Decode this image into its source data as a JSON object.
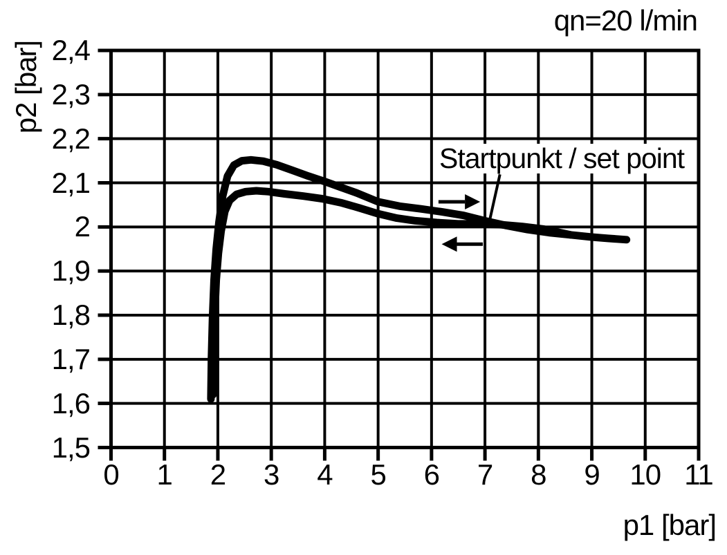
{
  "title": "qn=20 l/min",
  "annotation": {
    "label": "Startpunkt / set point"
  },
  "axes": {
    "x": {
      "label": "p1 [bar]",
      "ticks": [
        {
          "value": 0,
          "label": "0"
        },
        {
          "value": 1,
          "label": "1"
        },
        {
          "value": 2,
          "label": "2"
        },
        {
          "value": 3,
          "label": "3"
        },
        {
          "value": 4,
          "label": "4"
        },
        {
          "value": 5,
          "label": "5"
        },
        {
          "value": 6,
          "label": "6"
        },
        {
          "value": 7,
          "label": "7"
        },
        {
          "value": 8,
          "label": "8"
        },
        {
          "value": 9,
          "label": "9"
        },
        {
          "value": 10,
          "label": "10"
        },
        {
          "value": 11,
          "label": "11"
        }
      ]
    },
    "y": {
      "label": "p2 [bar]",
      "ticks": [
        {
          "value": 2.4,
          "label": "2,4"
        },
        {
          "value": 2.3,
          "label": "2,3"
        },
        {
          "value": 2.2,
          "label": "2,2"
        },
        {
          "value": 2.1,
          "label": "2,1"
        },
        {
          "value": 2.0,
          "label": "2"
        },
        {
          "value": 1.9,
          "label": "1,9"
        },
        {
          "value": 1.8,
          "label": "1,8"
        },
        {
          "value": 1.7,
          "label": "1,7"
        },
        {
          "value": 1.6,
          "label": "1,6"
        },
        {
          "value": 1.5,
          "label": "1,5"
        }
      ]
    }
  },
  "colors": {
    "ink": "#000000",
    "background": "#ffffff"
  },
  "chart_data": {
    "type": "line",
    "title": "qn=20 l/min",
    "xlabel": "p1 [bar]",
    "ylabel": "p2 [bar]",
    "xlim": [
      0,
      11
    ],
    "ylim": [
      1.5,
      2.4
    ],
    "grid": true,
    "x_ticks": [
      0,
      1,
      2,
      3,
      4,
      5,
      6,
      7,
      8,
      9,
      10,
      11
    ],
    "y_ticks": [
      1.5,
      1.6,
      1.7,
      1.8,
      1.9,
      2.0,
      2.1,
      2.2,
      2.3,
      2.4
    ],
    "annotation_text": "Startpunkt / set point",
    "set_point": [
      7.1,
      2.015
    ],
    "series": [
      {
        "name": "upper-hysteresis-curve",
        "points": [
          [
            1.87,
            1.61
          ],
          [
            1.88,
            1.7
          ],
          [
            1.9,
            1.79
          ],
          [
            1.93,
            1.88
          ],
          [
            1.97,
            1.95
          ],
          [
            2.02,
            2.01
          ],
          [
            2.09,
            2.07
          ],
          [
            2.18,
            2.115
          ],
          [
            2.3,
            2.14
          ],
          [
            2.45,
            2.15
          ],
          [
            2.62,
            2.152
          ],
          [
            2.85,
            2.149
          ],
          [
            3.1,
            2.141
          ],
          [
            3.4,
            2.128
          ],
          [
            3.7,
            2.115
          ],
          [
            4.0,
            2.103
          ],
          [
            4.3,
            2.09
          ],
          [
            4.6,
            2.077
          ],
          [
            5.0,
            2.057
          ],
          [
            5.4,
            2.047
          ],
          [
            5.8,
            2.041
          ],
          [
            6.2,
            2.034
          ],
          [
            6.6,
            2.026
          ],
          [
            7.0,
            2.014
          ],
          [
            7.4,
            2.003
          ],
          [
            7.8,
            1.994
          ],
          [
            8.2,
            1.987
          ],
          [
            8.6,
            1.982
          ],
          [
            9.0,
            1.977
          ],
          [
            9.3,
            1.974
          ],
          [
            9.65,
            1.971
          ]
        ]
      },
      {
        "name": "lower-hysteresis-curve",
        "points": [
          [
            1.91,
            1.62
          ],
          [
            1.92,
            1.71
          ],
          [
            1.94,
            1.8
          ],
          [
            1.97,
            1.88
          ],
          [
            2.01,
            1.94
          ],
          [
            2.06,
            1.99
          ],
          [
            2.13,
            2.035
          ],
          [
            2.22,
            2.06
          ],
          [
            2.35,
            2.074
          ],
          [
            2.52,
            2.08
          ],
          [
            2.72,
            2.082
          ],
          [
            2.95,
            2.08
          ],
          [
            3.25,
            2.075
          ],
          [
            3.6,
            2.07
          ],
          [
            3.95,
            2.064
          ],
          [
            4.3,
            2.055
          ],
          [
            4.65,
            2.043
          ],
          [
            5.0,
            2.03
          ],
          [
            5.35,
            2.02
          ],
          [
            5.7,
            2.014
          ],
          [
            6.1,
            2.01
          ],
          [
            6.5,
            2.007
          ],
          [
            6.9,
            2.007
          ],
          [
            7.3,
            2.005
          ],
          [
            7.7,
            2.001
          ],
          [
            8.1,
            1.995
          ],
          [
            8.6,
            1.982
          ]
        ]
      }
    ],
    "arrows": [
      {
        "name": "forward-direction-arrow",
        "x1": 6.13,
        "y1": 2.057,
        "x2": 6.91,
        "y2": 2.057
      },
      {
        "name": "return-direction-arrow",
        "x1": 6.96,
        "y1": 1.961,
        "x2": 6.19,
        "y2": 1.961
      }
    ],
    "leader_line": {
      "x1": 7.28,
      "y1": 2.119,
      "x2": 7.09,
      "y2": 2.016
    }
  }
}
